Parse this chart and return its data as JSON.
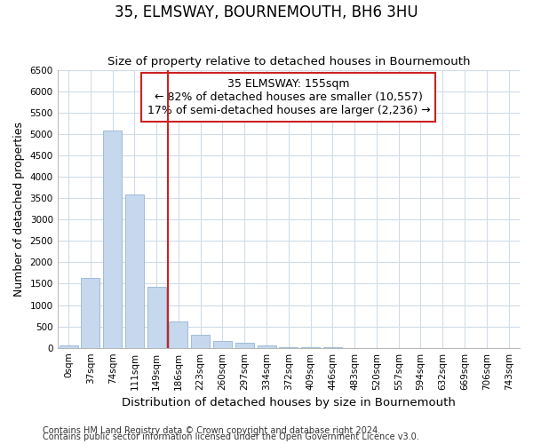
{
  "title": "35, ELMSWAY, BOURNEMOUTH, BH6 3HU",
  "subtitle": "Size of property relative to detached houses in Bournemouth",
  "xlabel": "Distribution of detached houses by size in Bournemouth",
  "ylabel": "Number of detached properties",
  "bar_labels": [
    "0sqm",
    "37sqm",
    "74sqm",
    "111sqm",
    "149sqm",
    "186sqm",
    "223sqm",
    "260sqm",
    "297sqm",
    "334sqm",
    "372sqm",
    "409sqm",
    "446sqm",
    "483sqm",
    "520sqm",
    "557sqm",
    "594sqm",
    "632sqm",
    "669sqm",
    "706sqm",
    "743sqm"
  ],
  "bar_values": [
    60,
    1640,
    5080,
    3580,
    1420,
    620,
    300,
    160,
    110,
    55,
    20,
    10,
    5,
    0,
    0,
    0,
    0,
    0,
    0,
    0,
    0
  ],
  "bar_color": "#c5d8ee",
  "bar_edge_color": "#a0bcd8",
  "annotation_line1": "35 ELMSWAY: 155sqm",
  "annotation_line2": "← 82% of detached houses are smaller (10,557)",
  "annotation_line3": "17% of semi-detached houses are larger (2,236) →",
  "vline_color": "#cc2222",
  "vline_x": 4.5,
  "ylim": [
    0,
    6500
  ],
  "yticks": [
    0,
    500,
    1000,
    1500,
    2000,
    2500,
    3000,
    3500,
    4000,
    4500,
    5000,
    5500,
    6000,
    6500
  ],
  "footnote1": "Contains HM Land Registry data © Crown copyright and database right 2024.",
  "footnote2": "Contains public sector information licensed under the Open Government Licence v3.0.",
  "background_color": "#ffffff",
  "grid_color": "#d0dce8",
  "title_fontsize": 12,
  "subtitle_fontsize": 9.5,
  "annotation_fontsize": 9,
  "tick_fontsize": 7.5,
  "xlabel_fontsize": 9.5,
  "ylabel_fontsize": 9,
  "footnote_fontsize": 7
}
